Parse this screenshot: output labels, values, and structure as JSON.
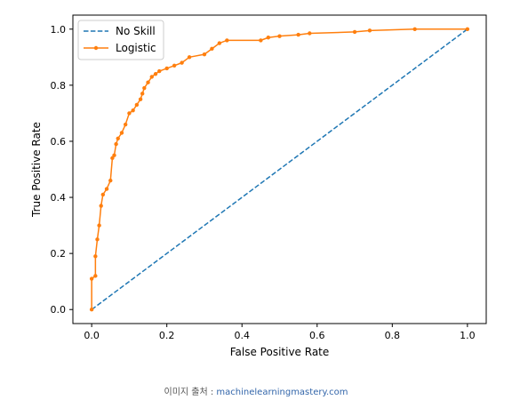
{
  "chart_data": {
    "type": "line",
    "xlabel": "False Positive Rate",
    "ylabel": "True Positive Rate",
    "xlim": [
      -0.05,
      1.05
    ],
    "ylim": [
      -0.05,
      1.05
    ],
    "x_ticks": [
      "0.0",
      "0.2",
      "0.4",
      "0.6",
      "0.8",
      "1.0"
    ],
    "y_ticks": [
      "0.0",
      "0.2",
      "0.4",
      "0.6",
      "0.8",
      "1.0"
    ],
    "grid": false,
    "legend": "top-left",
    "series": [
      {
        "name": "No Skill",
        "color": "#1f77b4",
        "style": "dashed",
        "points": [
          [
            0,
            0
          ],
          [
            1,
            1
          ]
        ]
      },
      {
        "name": "Logistic",
        "color": "#ff7f0e",
        "style": "solid",
        "marker": "dot",
        "points": [
          [
            0,
            0
          ],
          [
            0,
            0.11
          ],
          [
            0.01,
            0.12
          ],
          [
            0.01,
            0.19
          ],
          [
            0.015,
            0.25
          ],
          [
            0.02,
            0.3
          ],
          [
            0.025,
            0.37
          ],
          [
            0.03,
            0.41
          ],
          [
            0.04,
            0.43
          ],
          [
            0.05,
            0.46
          ],
          [
            0.055,
            0.54
          ],
          [
            0.06,
            0.55
          ],
          [
            0.065,
            0.59
          ],
          [
            0.07,
            0.61
          ],
          [
            0.08,
            0.63
          ],
          [
            0.09,
            0.66
          ],
          [
            0.1,
            0.7
          ],
          [
            0.11,
            0.71
          ],
          [
            0.12,
            0.73
          ],
          [
            0.13,
            0.75
          ],
          [
            0.135,
            0.77
          ],
          [
            0.14,
            0.79
          ],
          [
            0.15,
            0.81
          ],
          [
            0.16,
            0.83
          ],
          [
            0.17,
            0.84
          ],
          [
            0.18,
            0.85
          ],
          [
            0.2,
            0.86
          ],
          [
            0.22,
            0.87
          ],
          [
            0.24,
            0.88
          ],
          [
            0.26,
            0.9
          ],
          [
            0.3,
            0.91
          ],
          [
            0.32,
            0.93
          ],
          [
            0.34,
            0.95
          ],
          [
            0.36,
            0.96
          ],
          [
            0.45,
            0.96
          ],
          [
            0.47,
            0.97
          ],
          [
            0.5,
            0.975
          ],
          [
            0.55,
            0.98
          ],
          [
            0.58,
            0.985
          ],
          [
            0.7,
            0.99
          ],
          [
            0.74,
            0.995
          ],
          [
            0.86,
            1.0
          ],
          [
            1.0,
            1.0
          ]
        ]
      }
    ]
  },
  "caption": {
    "prefix": "이미지 출처 : ",
    "source": "machinelearningmastery.com"
  }
}
